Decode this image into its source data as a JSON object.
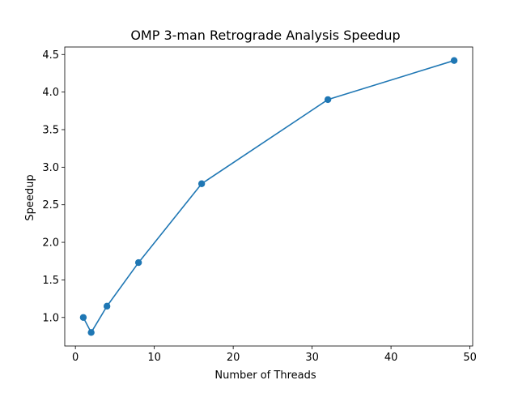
{
  "chart_data": {
    "type": "line",
    "title": "OMP 3-man Retrograde Analysis Speedup",
    "xlabel": "Number of Threads",
    "ylabel": "Speedup",
    "xlim": [
      -1.35,
      50.35
    ],
    "ylim": [
      0.62,
      4.6
    ],
    "xticks": [
      0,
      10,
      20,
      30,
      40,
      50
    ],
    "yticks": [
      1.0,
      1.5,
      2.0,
      2.5,
      3.0,
      3.5,
      4.0,
      4.5
    ],
    "xtick_labels": [
      "0",
      "10",
      "20",
      "30",
      "40",
      "50"
    ],
    "ytick_labels": [
      "1.0",
      "1.5",
      "2.0",
      "2.5",
      "3.0",
      "3.5",
      "4.0",
      "4.5"
    ],
    "grid": false,
    "series": [
      {
        "x": [
          1,
          2,
          4,
          8,
          16,
          32,
          48
        ],
        "y": [
          1.0,
          0.8,
          1.15,
          1.73,
          2.78,
          3.9,
          4.42
        ],
        "color": "#1f77b4",
        "marker": "circle"
      }
    ]
  }
}
